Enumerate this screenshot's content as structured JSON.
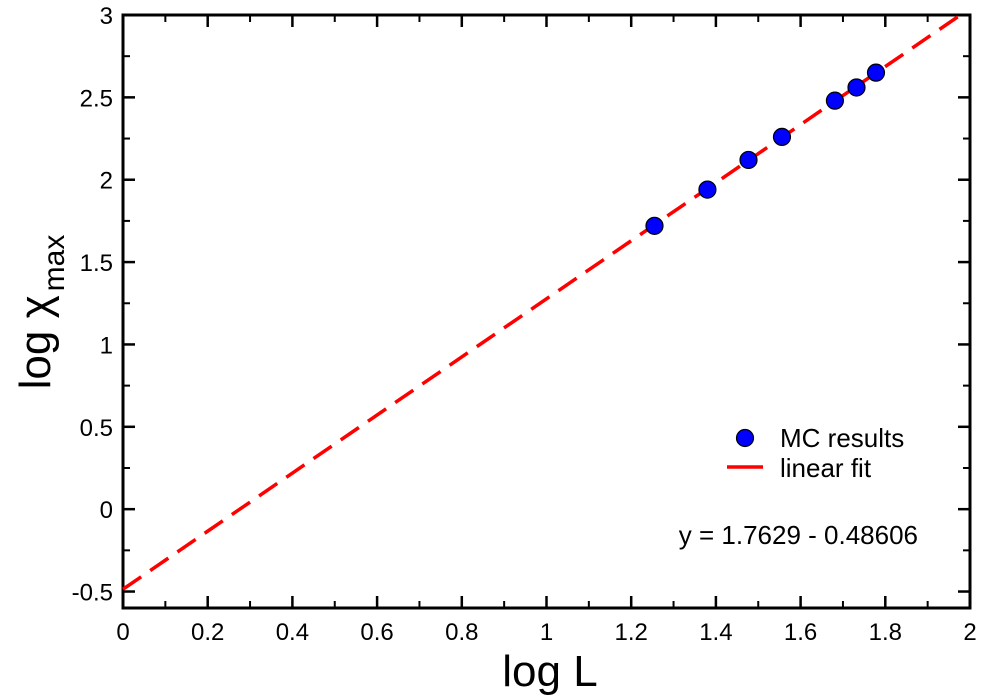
{
  "chart_data": {
    "type": "scatter",
    "title": "",
    "xlabel": "log L",
    "ylabel": {
      "base": "log χ",
      "subscript": "max"
    },
    "xlim": [
      0,
      2
    ],
    "ylim": [
      -0.6,
      3
    ],
    "x_ticks": [
      0,
      0.2,
      0.4,
      0.6,
      0.8,
      1,
      1.2,
      1.4,
      1.6,
      1.8,
      2
    ],
    "x_tick_labels": [
      "0",
      "0.2",
      "0.4",
      "0.6",
      "0.8",
      "1",
      "1.2",
      "1.4",
      "1.6",
      "1.8",
      "2"
    ],
    "y_ticks": [
      -0.5,
      0,
      0.5,
      1,
      1.5,
      2,
      2.5,
      3
    ],
    "y_tick_labels": [
      "-0.5",
      "0",
      "0.5",
      "1",
      "1.5",
      "2",
      "2.5",
      "3"
    ],
    "grid": false,
    "legend_position": "bottom-right",
    "series": [
      {
        "name": "MC results",
        "kind": "scatter",
        "color": "#0000ff",
        "x": [
          1.255,
          1.38,
          1.477,
          1.556,
          1.681,
          1.732,
          1.778
        ],
        "y": [
          1.72,
          1.94,
          2.12,
          2.26,
          2.48,
          2.56,
          2.65
        ]
      },
      {
        "name": "linear fit",
        "kind": "line",
        "style": "dashed",
        "color": "#ff0000",
        "slope": 1.7629,
        "intercept": -0.48606,
        "x_range": [
          0,
          2
        ]
      }
    ],
    "annotations": [
      {
        "text": "y = 1.7629 - 0.48606"
      }
    ]
  }
}
